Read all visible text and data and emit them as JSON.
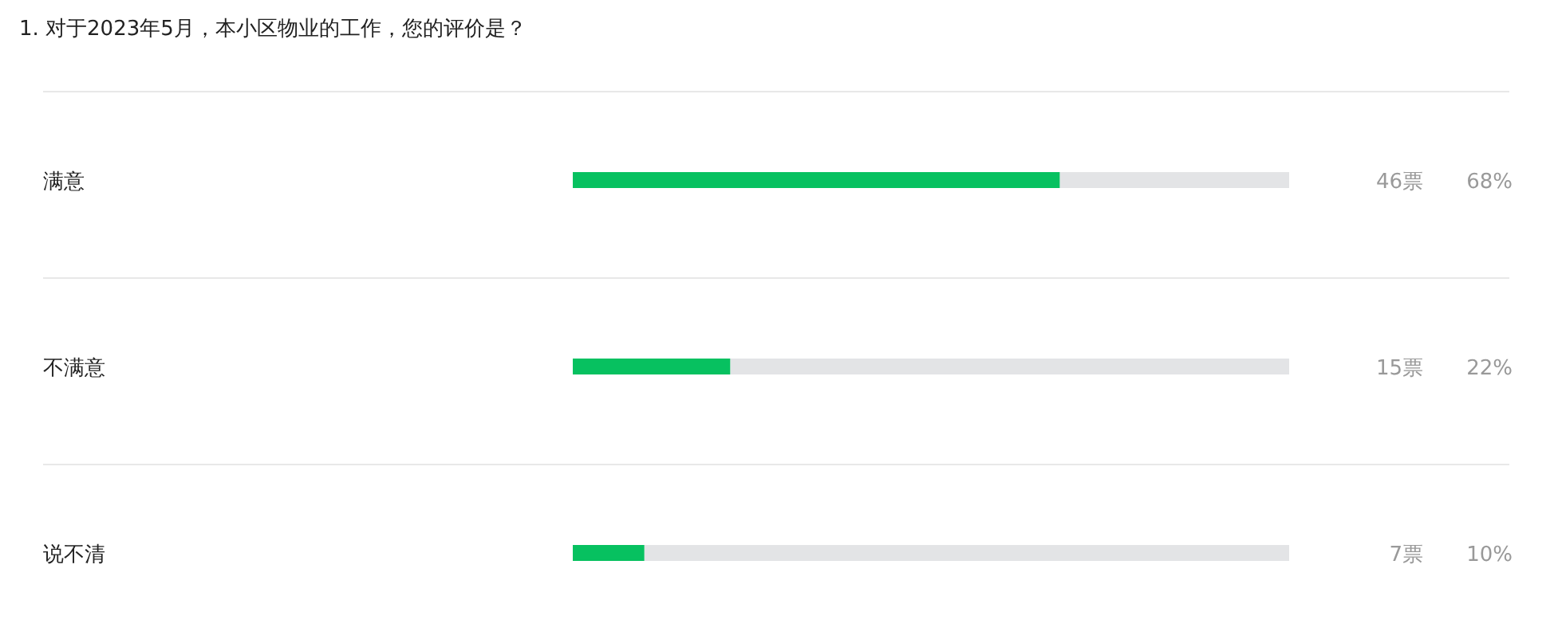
{
  "chart_data": {
    "type": "bar",
    "title": "1. 对于2023年5月，本小区物业的工作，您的评价是？",
    "orientation": "horizontal",
    "stacked": true,
    "xlim": [
      0,
      100
    ],
    "tick_labels": "y",
    "categories": [
      "满意",
      "不满意",
      "说不清"
    ],
    "series": [
      {
        "color": "#07c160",
        "values": [
          68,
          22,
          10
        ],
        "value_labels": [
          "68%",
          "22%",
          "10%"
        ]
      },
      {
        "color": "#e3e4e6",
        "values": [
          32,
          78,
          90
        ]
      }
    ],
    "annotations": [
      "46票",
      "15票",
      "7票"
    ]
  }
}
